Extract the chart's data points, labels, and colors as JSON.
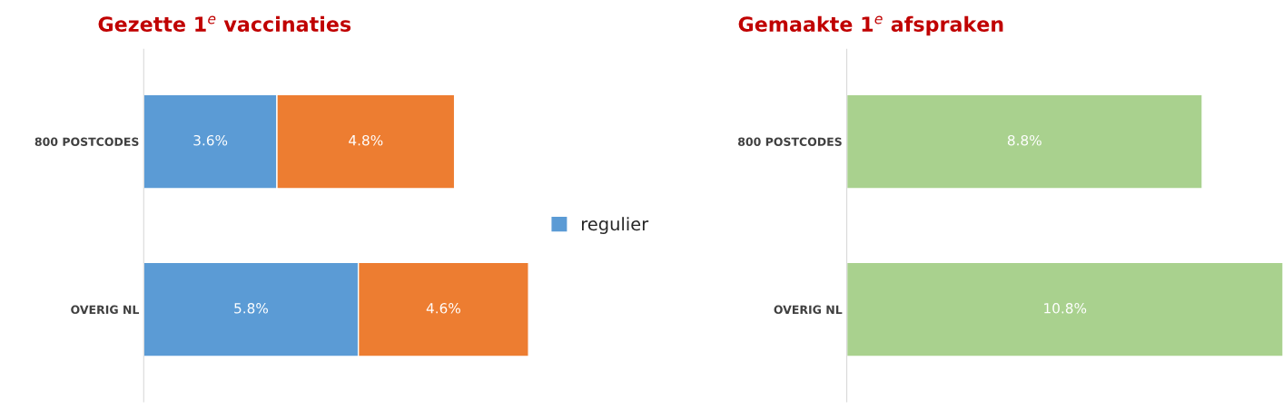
{
  "chart_data": [
    {
      "type": "bar",
      "title": "Gezette 1$^{e}$ vaccinaties",
      "orientation": "horizontal",
      "stacked": true,
      "categories": [
        "800 POSTCODES",
        "OVERIG NL"
      ],
      "legend": "right",
      "tick_labels": "y",
      "grid": false,
      "series": [
        {
          "name": "regulier",
          "color": "#5b9bd5",
          "values": [
            3.6,
            5.8
          ],
          "value_labels": [
            "3.6%",
            "5.8%"
          ]
        },
        {
          "color": "#ed7d31",
          "values": [
            4.8,
            4.6
          ],
          "value_labels": [
            "4.8%",
            "4.6%"
          ]
        }
      ]
    },
    {
      "type": "bar",
      "title": "Gemaakte 1$^{e}$ afspraken",
      "orientation": "horizontal",
      "categories": [
        "800 POSTCODES",
        "OVERIG NL"
      ],
      "tick_labels": "y",
      "grid": false,
      "series": [
        {
          "color": "#a9d18e",
          "values": [
            8.8,
            10.8
          ],
          "value_labels": [
            "8.8%",
            "10.8%"
          ]
        }
      ]
    }
  ]
}
